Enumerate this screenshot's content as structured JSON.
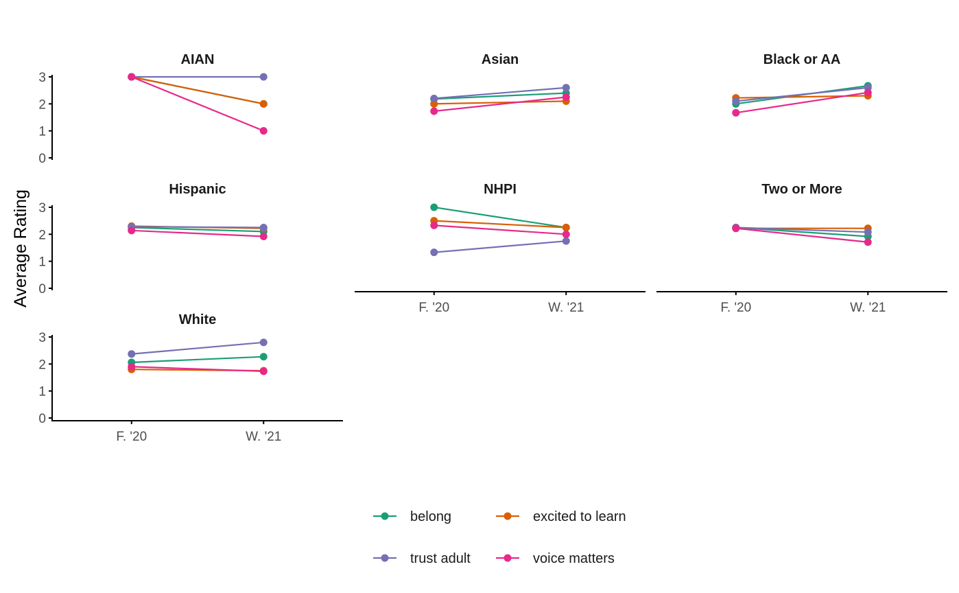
{
  "chart_data": {
    "type": "line",
    "ylabel": "Average Rating",
    "xlabel": "",
    "categories": [
      "F. '20",
      "W. '21"
    ],
    "ylim": [
      0,
      3
    ],
    "yticks": [
      "0",
      "1",
      "2",
      "3"
    ],
    "grid": false,
    "legend_position": "bottom",
    "series_styles": [
      {
        "name": "belong",
        "color": "#1b9e77"
      },
      {
        "name": "excited to learn",
        "color": "#d95f02"
      },
      {
        "name": "trust adult",
        "color": "#7570b3"
      },
      {
        "name": "voice matters",
        "color": "#e7298a"
      }
    ],
    "panels": [
      {
        "title": "AIAN",
        "series": [
          {
            "name": "belong",
            "values": [
              3.0,
              2.0
            ]
          },
          {
            "name": "excited to learn",
            "values": [
              3.0,
              2.0
            ]
          },
          {
            "name": "trust adult",
            "values": [
              3.0,
              3.0
            ]
          },
          {
            "name": "voice matters",
            "values": [
              3.0,
              1.0
            ]
          }
        ]
      },
      {
        "title": "Asian",
        "series": [
          {
            "name": "belong",
            "values": [
              2.18,
              2.4
            ]
          },
          {
            "name": "excited to learn",
            "values": [
              2.0,
              2.1
            ]
          },
          {
            "name": "trust adult",
            "values": [
              2.2,
              2.6
            ]
          },
          {
            "name": "voice matters",
            "values": [
              1.73,
              2.25
            ]
          }
        ]
      },
      {
        "title": "Black or AA",
        "series": [
          {
            "name": "belong",
            "values": [
              2.0,
              2.67
            ]
          },
          {
            "name": "excited to learn",
            "values": [
              2.22,
              2.3
            ]
          },
          {
            "name": "trust adult",
            "values": [
              2.1,
              2.6
            ]
          },
          {
            "name": "voice matters",
            "values": [
              1.67,
              2.42
            ]
          }
        ]
      },
      {
        "title": "Hispanic",
        "series": [
          {
            "name": "belong",
            "values": [
              2.25,
              2.1
            ]
          },
          {
            "name": "excited to learn",
            "values": [
              2.3,
              2.22
            ]
          },
          {
            "name": "trust adult",
            "values": [
              2.28,
              2.25
            ]
          },
          {
            "name": "voice matters",
            "values": [
              2.14,
              1.92
            ]
          }
        ]
      },
      {
        "title": "NHPI",
        "series": [
          {
            "name": "belong",
            "values": [
              3.0,
              2.25
            ]
          },
          {
            "name": "excited to learn",
            "values": [
              2.5,
              2.25
            ]
          },
          {
            "name": "trust adult",
            "values": [
              1.33,
              1.75
            ]
          },
          {
            "name": "voice matters",
            "values": [
              2.33,
              2.0
            ]
          }
        ]
      },
      {
        "title": "Two or More",
        "series": [
          {
            "name": "belong",
            "values": [
              2.25,
              1.92
            ]
          },
          {
            "name": "excited to learn",
            "values": [
              2.22,
              2.22
            ]
          },
          {
            "name": "trust adult",
            "values": [
              2.25,
              2.08
            ]
          },
          {
            "name": "voice matters",
            "values": [
              2.22,
              1.71
            ]
          }
        ]
      },
      {
        "title": "White",
        "series": [
          {
            "name": "belong",
            "values": [
              2.06,
              2.27
            ]
          },
          {
            "name": "excited to learn",
            "values": [
              1.8,
              1.75
            ]
          },
          {
            "name": "trust adult",
            "values": [
              2.37,
              2.8
            ]
          },
          {
            "name": "voice matters",
            "values": [
              1.9,
              1.73
            ]
          }
        ]
      }
    ]
  }
}
